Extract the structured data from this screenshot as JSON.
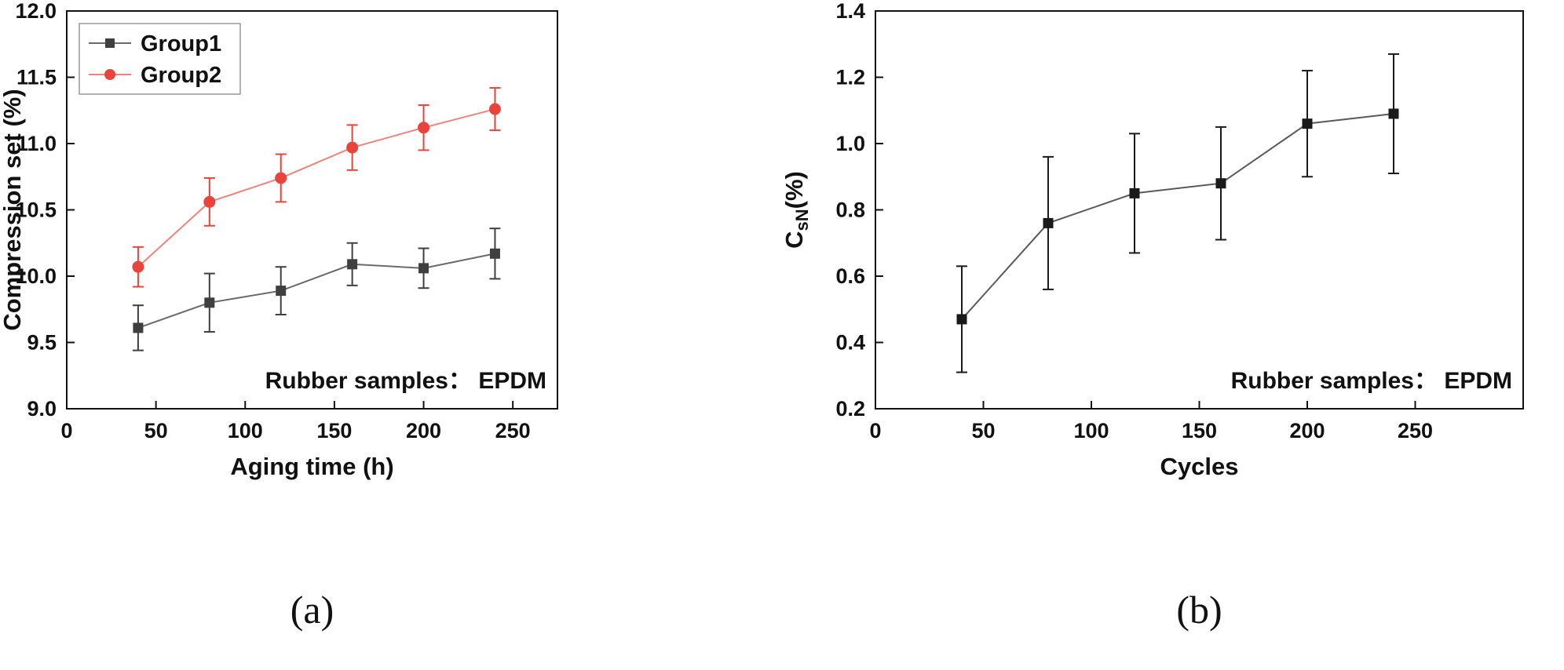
{
  "figure": {
    "background": "#ffffff",
    "foreground": "#111111"
  },
  "chart_data": [
    {
      "type": "line",
      "title": "",
      "xlabel": "Aging time (h)",
      "ylabel": "Compression set (%)",
      "ylabel_parts": [
        {
          "t": "Compression set (%)"
        }
      ],
      "xlim": [
        0,
        275
      ],
      "ylim": [
        9.0,
        12.0
      ],
      "xticks": [
        0,
        50,
        100,
        150,
        200,
        250
      ],
      "xtick_labels": [
        "0",
        "50",
        "100",
        "150",
        "200",
        "250"
      ],
      "yticks": [
        9.0,
        9.5,
        10.0,
        10.5,
        11.0,
        11.5,
        12.0
      ],
      "ytick_labels": [
        "9.0",
        "9.5",
        "10.0",
        "10.5",
        "11.0",
        "11.5",
        "12.0"
      ],
      "grid": false,
      "x": [
        40,
        80,
        120,
        160,
        200,
        240
      ],
      "series": [
        {
          "name": "Group1",
          "marker": "square",
          "color": "#3f3f3f",
          "line_color": "#6a6a6a",
          "values": [
            9.61,
            9.8,
            9.89,
            10.09,
            10.06,
            10.17
          ],
          "errors": [
            0.17,
            0.22,
            0.18,
            0.16,
            0.15,
            0.19
          ]
        },
        {
          "name": "Group2",
          "marker": "circle",
          "color": "#e8443c",
          "line_color": "#f0837c",
          "values": [
            10.07,
            10.56,
            10.74,
            10.97,
            11.12,
            11.26
          ],
          "errors": [
            0.15,
            0.18,
            0.18,
            0.17,
            0.17,
            0.16
          ]
        }
      ],
      "legend": {
        "show": true,
        "position": "top-left",
        "entries": [
          "Group1",
          "Group2"
        ]
      },
      "annotation": "Rubber samples： EPDM",
      "caption": "(a)"
    },
    {
      "type": "line",
      "title": "",
      "xlabel": "Cycles",
      "ylabel": "CsN(%)",
      "ylabel_parts": [
        {
          "t": "C"
        },
        {
          "t": "sN",
          "sub": true
        },
        {
          "t": "(%)"
        }
      ],
      "xlim": [
        0,
        300
      ],
      "ylim": [
        0.2,
        1.4
      ],
      "xticks": [
        0,
        50,
        100,
        150,
        200,
        250
      ],
      "xtick_labels": [
        "0",
        "50",
        "100",
        "150",
        "200",
        "250"
      ],
      "yticks": [
        0.2,
        0.4,
        0.6,
        0.8,
        1.0,
        1.2,
        1.4
      ],
      "ytick_labels": [
        "0.2",
        "0.4",
        "0.6",
        "0.8",
        "1.0",
        "1.2",
        "1.4"
      ],
      "grid": false,
      "x": [
        40,
        80,
        120,
        160,
        200,
        240
      ],
      "series": [
        {
          "name": "CsN",
          "marker": "square",
          "color": "#1a1a1a",
          "line_color": "#5a5a5a",
          "values": [
            0.47,
            0.76,
            0.85,
            0.88,
            1.06,
            1.09
          ],
          "errors": [
            0.16,
            0.2,
            0.18,
            0.17,
            0.16,
            0.18
          ]
        }
      ],
      "legend": {
        "show": false,
        "entries": []
      },
      "annotation": "Rubber samples： EPDM",
      "caption": "(b)"
    }
  ]
}
